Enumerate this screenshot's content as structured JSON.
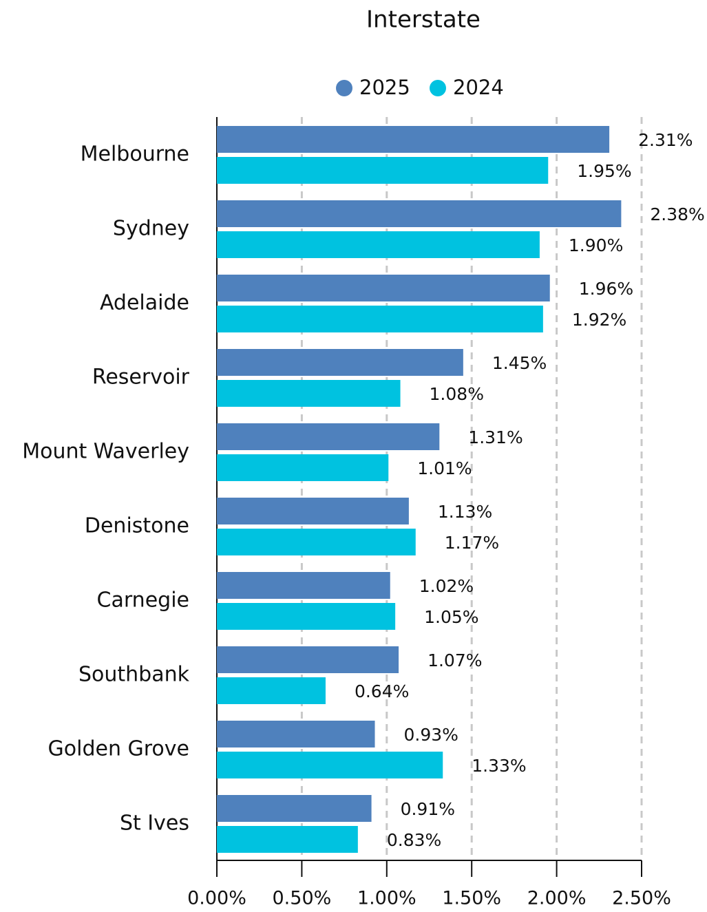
{
  "chart_data": {
    "type": "bar",
    "orientation": "horizontal",
    "title": "Interstate",
    "categories": [
      "Melbourne",
      "Sydney",
      "Adelaide",
      "Reservoir",
      "Mount Waverley",
      "Denistone",
      "Carnegie",
      "Southbank",
      "Golden Grove",
      "St Ives"
    ],
    "series": [
      {
        "name": "2025",
        "color": "#4f81bd",
        "values": [
          2.31,
          2.38,
          1.96,
          1.45,
          1.31,
          1.13,
          1.02,
          1.07,
          0.93,
          0.91
        ],
        "value_labels": [
          "2.31%",
          "2.38%",
          "1.96%",
          "1.45%",
          "1.31%",
          "1.13%",
          "1.02%",
          "1.07%",
          "0.93%",
          "0.91%"
        ]
      },
      {
        "name": "2024",
        "color": "#00c2e0",
        "values": [
          1.95,
          1.9,
          1.92,
          1.08,
          1.01,
          1.17,
          1.05,
          0.64,
          1.33,
          0.83
        ],
        "value_labels": [
          "1.95%",
          "1.90%",
          "1.92%",
          "1.08%",
          "1.01%",
          "1.17%",
          "1.05%",
          "0.64%",
          "1.33%",
          "0.83%"
        ]
      }
    ],
    "xlim": [
      0,
      2.5
    ],
    "xticks": [
      {
        "value": 0,
        "label": "0.00%"
      },
      {
        "value": 0.5,
        "label": "0.50%"
      },
      {
        "value": 1,
        "label": "1.00%"
      },
      {
        "value": 1.5,
        "label": "1.50%"
      },
      {
        "value": 2,
        "label": "2.00%"
      },
      {
        "value": 2.5,
        "label": "2.50%"
      }
    ],
    "grid": true,
    "legend": "top"
  }
}
